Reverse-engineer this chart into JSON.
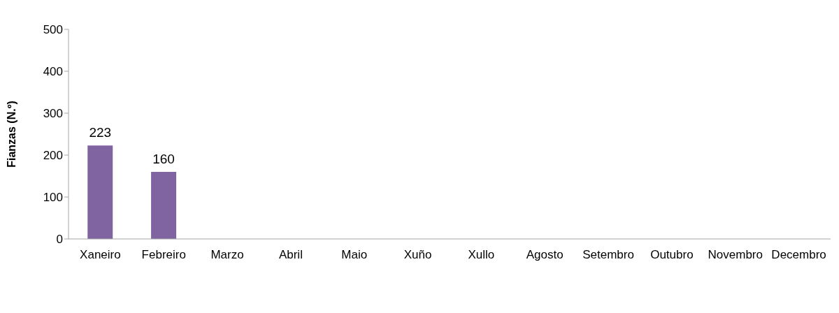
{
  "chart_data": {
    "type": "bar",
    "ylabel": "Fianzas (N.º)",
    "categories": [
      "Xaneiro",
      "Febreiro",
      "Marzo",
      "Abril",
      "Maio",
      "Xuño",
      "Xullo",
      "Agosto",
      "Setembro",
      "Outubro",
      "Novembro",
      "Decembro"
    ],
    "values": [
      223,
      160,
      null,
      null,
      null,
      null,
      null,
      null,
      null,
      null,
      null,
      null
    ],
    "color": "#8064a2",
    "ylim": [
      0,
      500
    ],
    "yticks": [
      0,
      100,
      200,
      300,
      400,
      500
    ],
    "data_labels": true
  }
}
